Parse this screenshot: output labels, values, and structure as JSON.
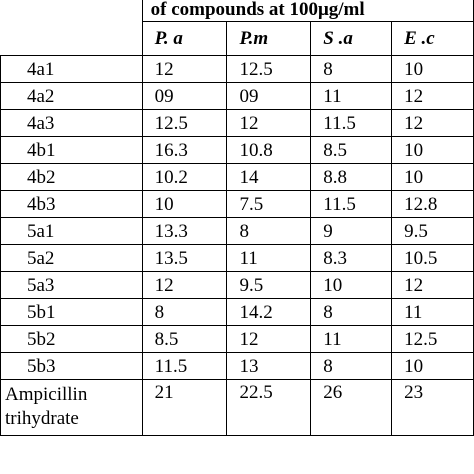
{
  "table": {
    "title": "of compounds at 100μg/ml",
    "columns": [
      "P. a",
      "P.m",
      "S .a",
      "E .c"
    ],
    "rows": [
      {
        "name": "4a1",
        "values": [
          "12",
          "12.5",
          "8",
          "10"
        ]
      },
      {
        "name": "4a2",
        "values": [
          "09",
          "09",
          "11",
          "12"
        ]
      },
      {
        "name": "4a3",
        "values": [
          "12.5",
          "12",
          "11.5",
          "12"
        ]
      },
      {
        "name": "4b1",
        "values": [
          "16.3",
          "10.8",
          "8.5",
          "10"
        ]
      },
      {
        "name": "4b2",
        "values": [
          "10.2",
          "14",
          "8.8",
          "10"
        ]
      },
      {
        "name": "4b3",
        "values": [
          "10",
          "7.5",
          "11.5",
          "12.8"
        ]
      },
      {
        "name": "5a1",
        "values": [
          "13.3",
          "8",
          "9",
          "9.5"
        ]
      },
      {
        "name": "5a2",
        "values": [
          "13.5",
          "11",
          "8.3",
          "10.5"
        ]
      },
      {
        "name": "5a3",
        "values": [
          "12",
          "9.5",
          "10",
          "12"
        ]
      },
      {
        "name": "5b1",
        "values": [
          "8",
          "14.2",
          "8",
          "11"
        ]
      },
      {
        "name": "5b2",
        "values": [
          "8.5",
          "12",
          "11",
          "12.5"
        ]
      },
      {
        "name": "5b3",
        "values": [
          "11.5",
          "13",
          "8",
          "10"
        ]
      }
    ],
    "standard": {
      "name": "Ampicillin trihydrate",
      "values": [
        "21",
        "22.5",
        "26",
        "23"
      ]
    }
  }
}
